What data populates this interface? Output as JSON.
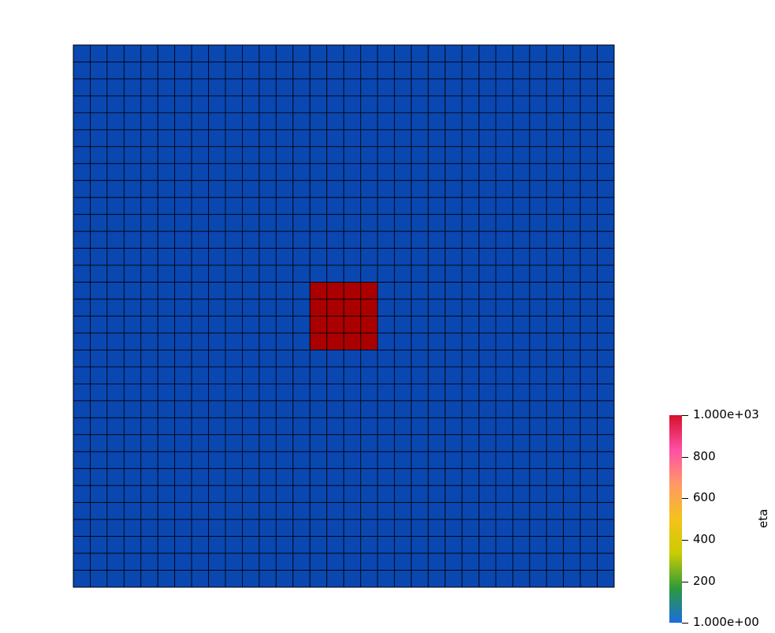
{
  "chart_data": {
    "type": "heatmap",
    "field_name": "eta",
    "grid": {
      "nx": 32,
      "ny": 32
    },
    "background_value": 1,
    "regions": [
      {
        "col_start": 14,
        "col_end": 18,
        "row_start": 14,
        "row_end": 18,
        "value": 1000
      }
    ],
    "colorbar": {
      "title": "eta",
      "min": 1,
      "max": 1000,
      "ticks": [
        {
          "value": 1000,
          "label": "1.000e+03"
        },
        {
          "value": 800,
          "label": "800"
        },
        {
          "value": 600,
          "label": "600"
        },
        {
          "value": 400,
          "label": "400"
        },
        {
          "value": 200,
          "label": "200"
        },
        {
          "value": 1,
          "label": "1.000e+00"
        }
      ],
      "placement": "bottom-right"
    },
    "colors": {
      "low": "#0a47b1",
      "high": "#aa0000",
      "grid_lines": "#000000",
      "colorbar_stops": [
        "#1a6ee0",
        "#2d9a3a",
        "#c9cc00",
        "#f5c21b",
        "#ff9966",
        "#ff4fa6",
        "#d6102a"
      ]
    }
  }
}
